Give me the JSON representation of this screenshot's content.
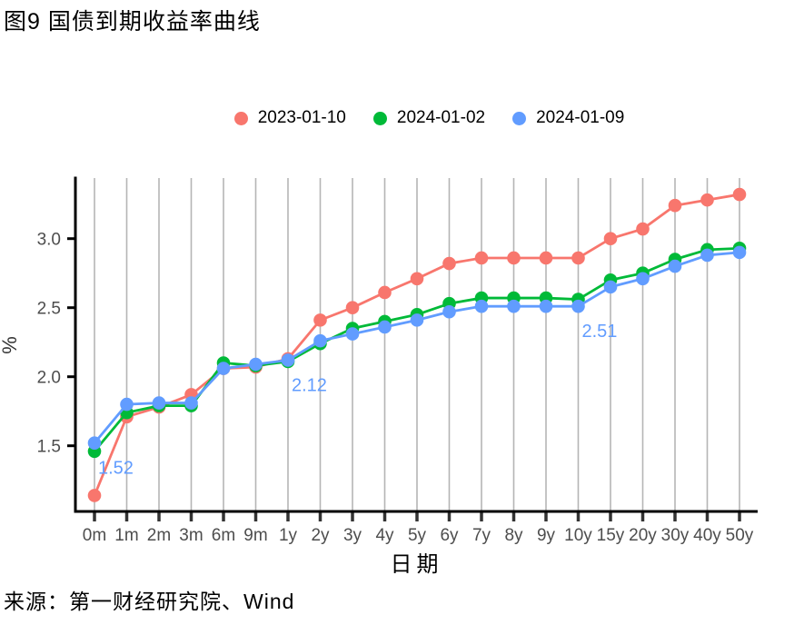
{
  "figure": {
    "title": "图9 国债到期收益率曲线",
    "source": "来源：第一财经研究院、Wind"
  },
  "chart_data": {
    "type": "line",
    "title": "图9 国债到期收益率曲线",
    "xlabel": "日期",
    "ylabel": "%",
    "legend_position": "top",
    "grid": "vertical-only",
    "categories": [
      "0m",
      "1m",
      "2m",
      "3m",
      "6m",
      "9m",
      "1y",
      "2y",
      "3y",
      "4y",
      "5y",
      "6y",
      "7y",
      "8y",
      "9y",
      "10y",
      "15y",
      "20y",
      "30y",
      "40y",
      "50y"
    ],
    "y_ticks": [
      "1.5",
      "2.0",
      "2.5",
      "3.0"
    ],
    "ylim": [
      1.0,
      3.45
    ],
    "series": [
      {
        "name": "2023-01-10",
        "color": "#F8766D",
        "values": [
          1.14,
          1.71,
          1.78,
          1.87,
          2.06,
          2.07,
          2.13,
          2.41,
          2.5,
          2.61,
          2.71,
          2.82,
          2.86,
          2.86,
          2.86,
          2.86,
          3.0,
          3.07,
          3.24,
          3.28,
          3.32
        ]
      },
      {
        "name": "2024-01-02",
        "color": "#00BA38",
        "values": [
          1.46,
          1.74,
          1.79,
          1.79,
          2.1,
          2.08,
          2.11,
          2.24,
          2.35,
          2.4,
          2.45,
          2.53,
          2.57,
          2.57,
          2.57,
          2.56,
          2.7,
          2.75,
          2.85,
          2.92,
          2.93
        ]
      },
      {
        "name": "2024-01-09",
        "color": "#619CFF",
        "values": [
          1.52,
          1.8,
          1.81,
          1.81,
          2.06,
          2.09,
          2.12,
          2.26,
          2.31,
          2.36,
          2.41,
          2.47,
          2.51,
          2.51,
          2.51,
          2.51,
          2.65,
          2.71,
          2.8,
          2.88,
          2.9
        ]
      }
    ],
    "annotations": [
      {
        "text": "1.52",
        "series": "2024-01-09",
        "category": "0m"
      },
      {
        "text": "2.12",
        "series": "2024-01-09",
        "category": "1y"
      },
      {
        "text": "2.51",
        "series": "2024-01-09",
        "category": "10y"
      }
    ]
  },
  "colors": {
    "grid": "#B5B5B5",
    "axis": "#000000",
    "tick_mark": "#333333",
    "tick_label": "#4D4D4D",
    "annotation": "#619CFF",
    "background": "#FFFFFF"
  }
}
